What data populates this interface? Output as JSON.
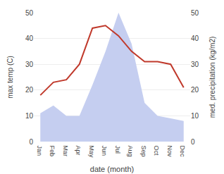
{
  "chart_data": {
    "type": "line",
    "categories": [
      "Jan",
      "Feb",
      "Mar",
      "Apr",
      "May",
      "Jun",
      "Jul",
      "Aug",
      "Sep",
      "Oct",
      "Nov",
      "Dec"
    ],
    "xlabel": "date (month)",
    "ylabel": "max temp (C)",
    "y2label": "med. precipitation (kg/m2)",
    "series": [
      {
        "type": "area",
        "axis": "y2",
        "color": "#c5cef0",
        "values": [
          11,
          14,
          10,
          10,
          22,
          35,
          50,
          38,
          15,
          10,
          9,
          8
        ]
      },
      {
        "type": "line",
        "color": "#c0392b",
        "values": [
          18,
          23,
          24,
          30,
          44,
          45,
          41,
          35,
          31,
          31,
          30,
          21
        ]
      }
    ],
    "ylim": [
      0,
      50
    ],
    "yticks": [
      0,
      10,
      20,
      30,
      40,
      50
    ],
    "y2lim": [
      0,
      50
    ],
    "y2ticks": [
      0,
      10,
      20,
      30,
      40,
      50
    ],
    "grid": true
  }
}
